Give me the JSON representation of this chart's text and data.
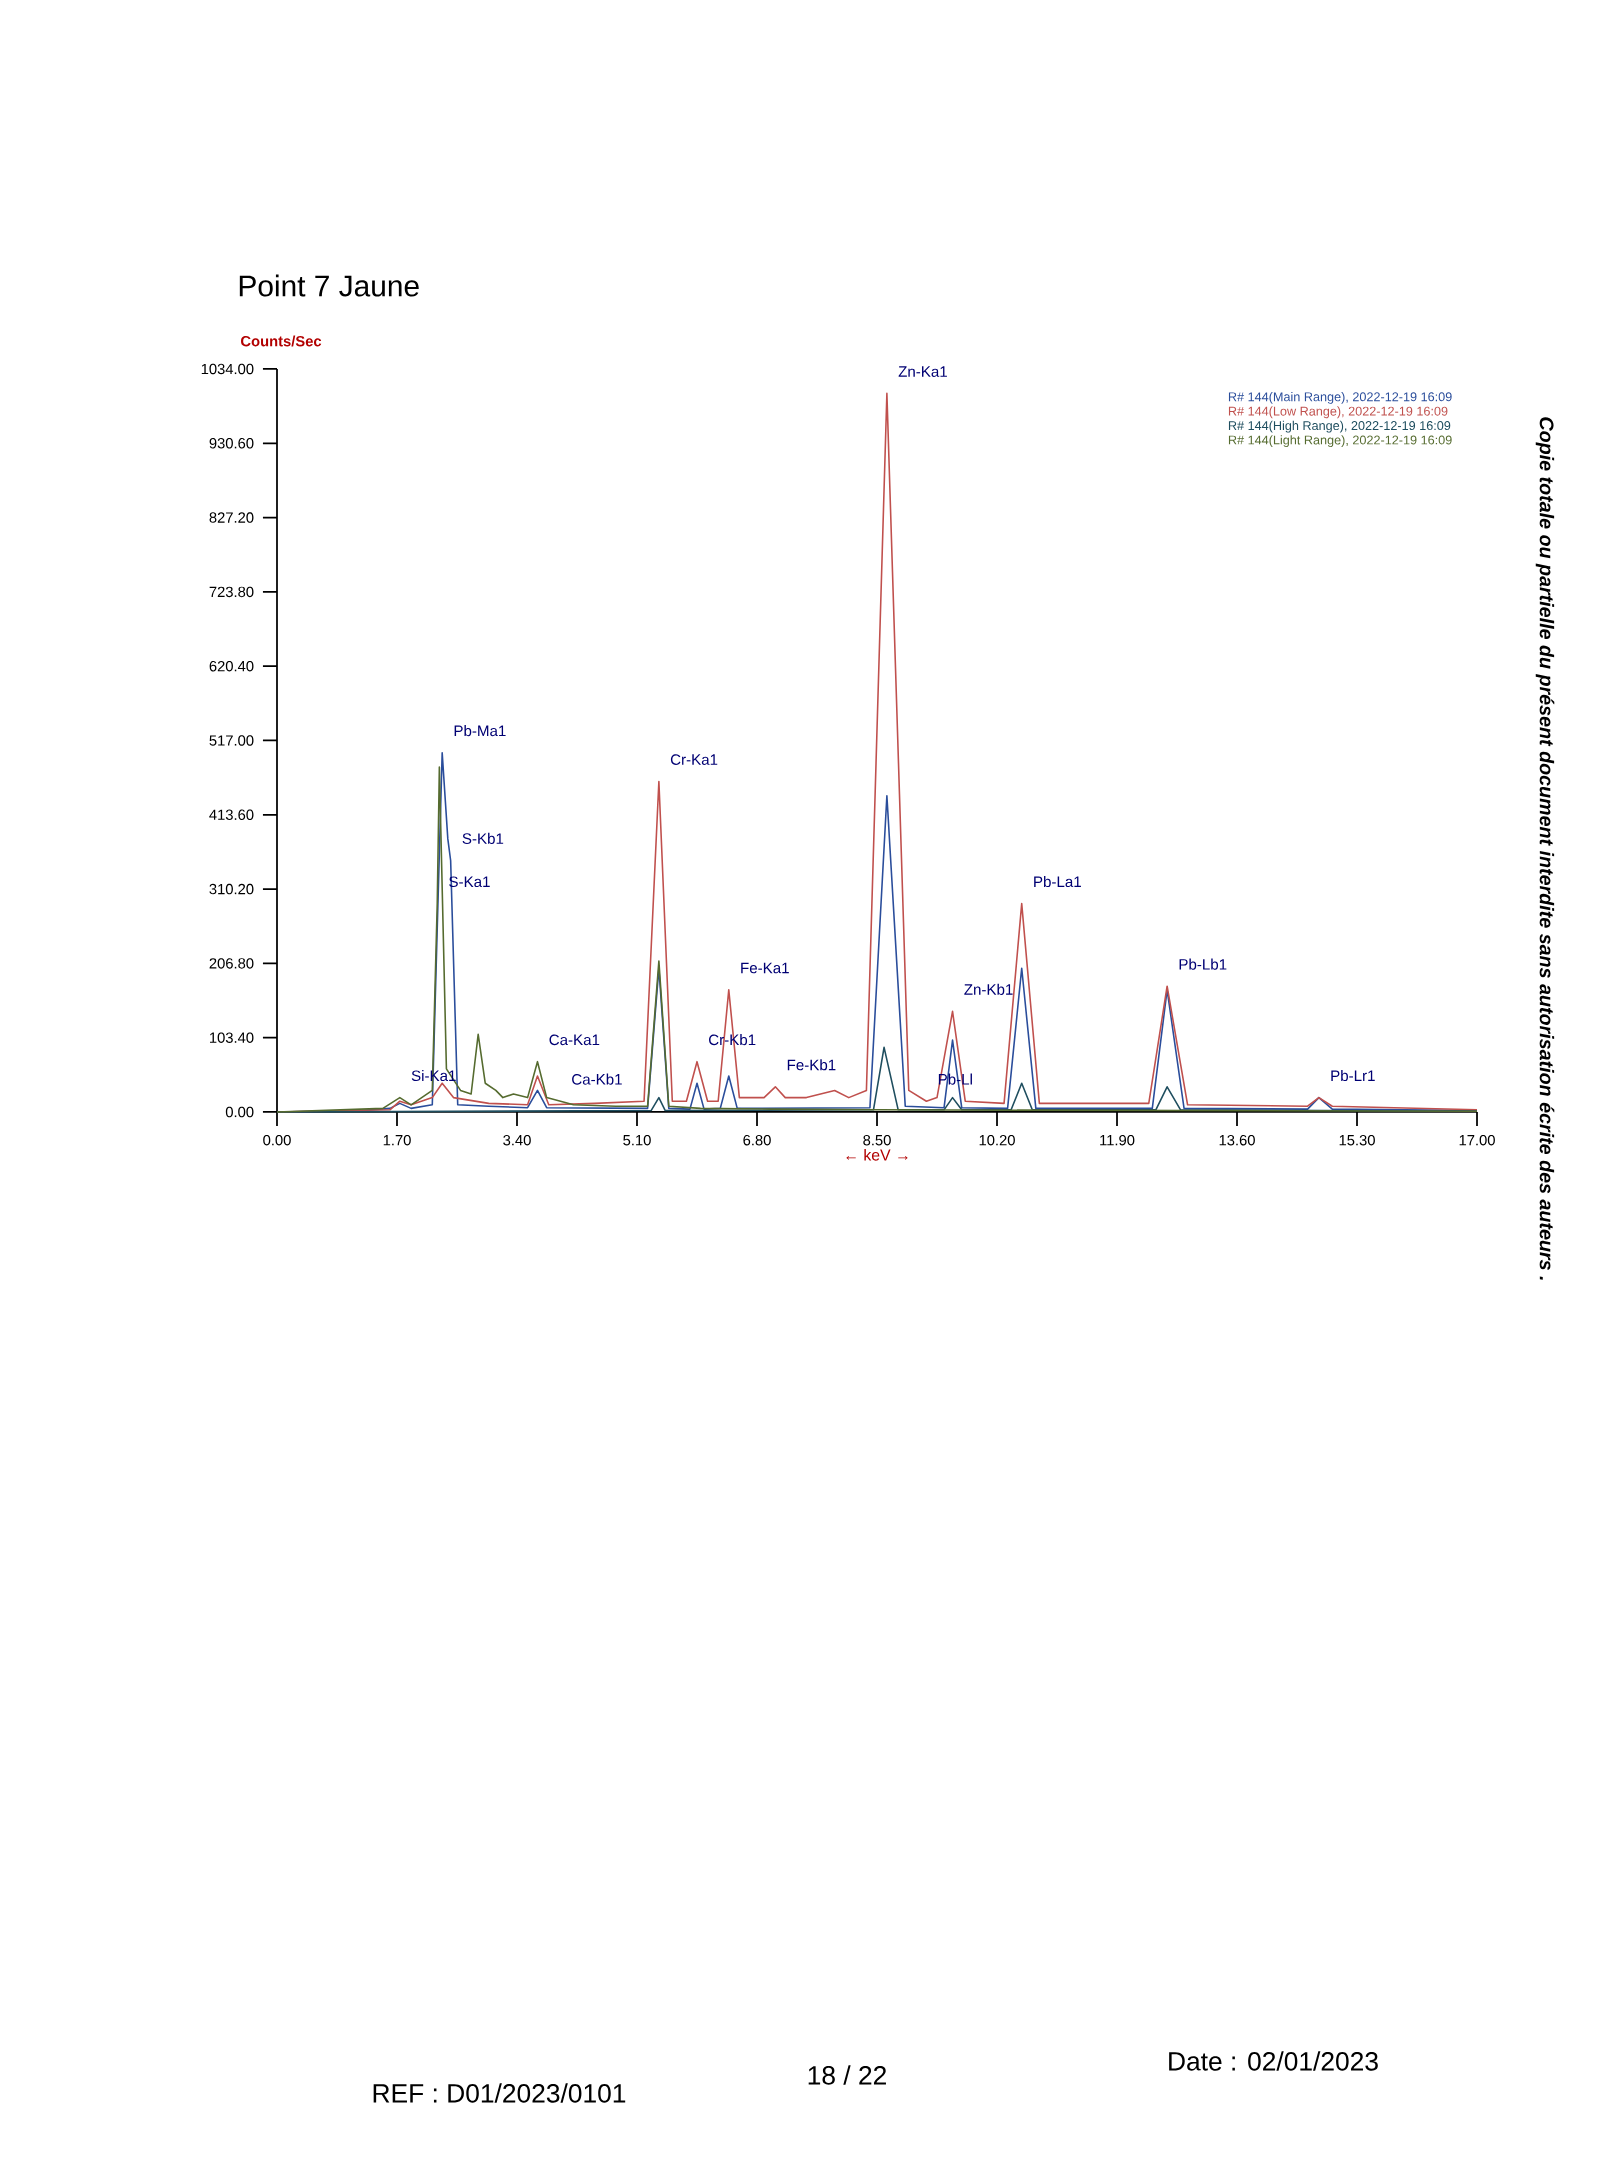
{
  "chart_data": {
    "type": "line",
    "title": "Point 7 Jaune",
    "xlabel": "← keV →",
    "ylabel": "Counts/Sec",
    "xlim": [
      0,
      17
    ],
    "ylim": [
      0,
      1034
    ],
    "xticks": [
      {
        "value": 0,
        "label": "0.00"
      },
      {
        "value": 1.7,
        "label": "1.70"
      },
      {
        "value": 3.4,
        "label": "3.40"
      },
      {
        "value": 5.1,
        "label": "5.10"
      },
      {
        "value": 6.8,
        "label": "6.80"
      },
      {
        "value": 8.5,
        "label": "8.50"
      },
      {
        "value": 10.2,
        "label": "10.20"
      },
      {
        "value": 11.9,
        "label": "11.90"
      },
      {
        "value": 13.6,
        "label": "13.60"
      },
      {
        "value": 15.3,
        "label": "15.30"
      },
      {
        "value": 17,
        "label": "17.00"
      }
    ],
    "yticks": [
      {
        "value": 0,
        "label": "0.00"
      },
      {
        "value": 103.4,
        "label": "103.40"
      },
      {
        "value": 206.8,
        "label": "206.80"
      },
      {
        "value": 310.2,
        "label": "310.20"
      },
      {
        "value": 413.6,
        "label": "413.60"
      },
      {
        "value": 517,
        "label": "517.00"
      },
      {
        "value": 620.4,
        "label": "620.40"
      },
      {
        "value": 723.8,
        "label": "723.80"
      },
      {
        "value": 827.2,
        "label": "827.20"
      },
      {
        "value": 930.6,
        "label": "930.60"
      },
      {
        "value": 1034,
        "label": "1034.00"
      }
    ],
    "legend": "top right",
    "series": [
      {
        "name": "R# 144(Main Range), 2022-12-19 16:09",
        "color": "#2a4d9b",
        "x": [
          0,
          1.2,
          1.6,
          1.74,
          1.9,
          2.2,
          2.34,
          2.42,
          2.46,
          2.56,
          3.0,
          3.55,
          3.69,
          3.82,
          5.25,
          5.41,
          5.55,
          5.85,
          5.95,
          6.05,
          6.28,
          6.4,
          6.52,
          8.4,
          8.64,
          8.9,
          9.45,
          9.57,
          9.7,
          10.35,
          10.55,
          10.75,
          12.4,
          12.61,
          12.85,
          14.6,
          14.76,
          14.95,
          17
        ],
        "values": [
          0,
          2,
          5,
          12,
          5,
          10,
          500,
          380,
          350,
          10,
          8,
          6,
          30,
          6,
          5,
          200,
          5,
          4,
          40,
          4,
          5,
          50,
          5,
          6,
          440,
          8,
          6,
          100,
          6,
          5,
          200,
          5,
          5,
          170,
          5,
          4,
          20,
          4,
          2
        ]
      },
      {
        "name": "R# 144(Low Range), 2022-12-19 16:09",
        "color": "#c0504d",
        "x": [
          0,
          1.6,
          1.74,
          1.9,
          2.2,
          2.34,
          2.5,
          3.0,
          3.55,
          3.69,
          3.85,
          4.5,
          5.2,
          5.41,
          5.6,
          5.8,
          5.95,
          6.1,
          6.25,
          6.4,
          6.55,
          6.9,
          7.06,
          7.2,
          7.5,
          7.9,
          8.1,
          8.35,
          8.64,
          8.95,
          9.2,
          9.35,
          9.57,
          9.75,
          10.3,
          10.55,
          10.8,
          12.35,
          12.61,
          12.9,
          14.6,
          14.76,
          14.95,
          17
        ],
        "values": [
          0,
          3,
          15,
          10,
          20,
          40,
          20,
          12,
          10,
          50,
          10,
          12,
          15,
          460,
          15,
          15,
          70,
          15,
          15,
          170,
          20,
          20,
          35,
          20,
          20,
          30,
          20,
          30,
          1000,
          30,
          15,
          20,
          140,
          15,
          12,
          290,
          12,
          12,
          175,
          10,
          8,
          20,
          8,
          3
        ]
      },
      {
        "name": "R# 144(High Range), 2022-12-19 16:09",
        "color": "#1f4e5f",
        "x": [
          0,
          5.3,
          5.41,
          5.5,
          8.45,
          8.6,
          8.8,
          9.45,
          9.57,
          9.7,
          10.4,
          10.55,
          10.7,
          12.45,
          12.61,
          12.8,
          17
        ],
        "values": [
          0,
          2,
          20,
          2,
          3,
          90,
          3,
          3,
          20,
          3,
          3,
          40,
          3,
          3,
          35,
          3,
          1
        ]
      },
      {
        "name": "R# 144(Light Range), 2022-12-19 16:09",
        "color": "#556b2f",
        "x": [
          0,
          1.5,
          1.74,
          1.9,
          2.2,
          2.27,
          2.3,
          2.4,
          2.6,
          2.75,
          2.85,
          2.95,
          3.1,
          3.2,
          3.35,
          3.55,
          3.69,
          3.82,
          4.01,
          4.2,
          4.8,
          5.25,
          5.41,
          5.55,
          6.0,
          7.0,
          8.5,
          17
        ],
        "values": [
          0,
          5,
          20,
          10,
          30,
          290,
          480,
          60,
          30,
          25,
          108,
          40,
          30,
          20,
          25,
          20,
          70,
          20,
          15,
          10,
          8,
          8,
          210,
          8,
          5,
          4,
          3,
          1
        ]
      }
    ],
    "annotations": [
      {
        "text": "Si-Ka1",
        "x": 1.74,
        "y": 20
      },
      {
        "text": "Pb-Ma1",
        "x": 2.34,
        "y": 500
      },
      {
        "text": "S-Kb1",
        "x": 2.46,
        "y": 350
      },
      {
        "text": "S-Ka1",
        "x": 2.27,
        "y": 290
      },
      {
        "text": "Ca-Ka1",
        "x": 3.69,
        "y": 70
      },
      {
        "text": "Ca-Kb1",
        "x": 4.01,
        "y": 15
      },
      {
        "text": "Cr-Ka1",
        "x": 5.41,
        "y": 460
      },
      {
        "text": "Cr-Kb1",
        "x": 5.95,
        "y": 70
      },
      {
        "text": "Fe-Ka1",
        "x": 6.4,
        "y": 170
      },
      {
        "text": "Fe-Kb1",
        "x": 7.06,
        "y": 35
      },
      {
        "text": "Zn-Ka1",
        "x": 8.64,
        "y": 1000
      },
      {
        "text": "Pb-Ll",
        "x": 9.2,
        "y": 15
      },
      {
        "text": "Zn-Kb1",
        "x": 9.57,
        "y": 140
      },
      {
        "text": "Pb-La1",
        "x": 10.55,
        "y": 290
      },
      {
        "text": "Pb-Lb1",
        "x": 12.61,
        "y": 175
      },
      {
        "text": "Pb-Lr1",
        "x": 14.76,
        "y": 20
      },
      "Copie totale ou partielle du présent document interdite sans autorisation écrite des auteurs .",
      "REF : D01/2023/0101",
      "18 / 22",
      "Date : 02/01/2023"
    ]
  }
}
